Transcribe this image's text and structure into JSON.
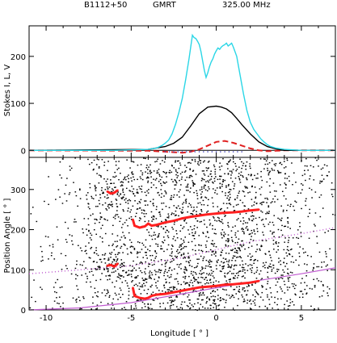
{
  "header": {
    "source": "B1112+50",
    "telescope": "GMRT",
    "frequency": "325.00  MHz"
  },
  "chart_data": [
    {
      "type": "line",
      "panel": "profile",
      "ylabel": "Stokes I, L, V",
      "xlim": [
        -11,
        7
      ],
      "ylim": [
        -15,
        265
      ],
      "xticks": [
        -10,
        -5,
        0,
        5
      ],
      "yticks": [
        0,
        100,
        200
      ],
      "colors": {
        "I": "#2ad6e6",
        "L": "#000000",
        "V": "#e02020",
        "PA": "#ff2020",
        "Vmark": "#4040c0"
      },
      "series": [
        {
          "key": "I",
          "x": [
            -11,
            -6,
            -4,
            -3.5,
            -3.2,
            -3,
            -2.8,
            -2.6,
            -2.4,
            -2.2,
            -2,
            -1.8,
            -1.6,
            -1.5,
            -1.4,
            -1.3,
            -1.2,
            -1.1,
            -1,
            -0.9,
            -0.8,
            -0.7,
            -0.6,
            -0.5,
            -0.4,
            -0.3,
            -0.2,
            -0.1,
            0,
            0.1,
            0.2,
            0.3,
            0.4,
            0.5,
            0.6,
            0.7,
            0.8,
            0.9,
            1,
            1.1,
            1.2,
            1.3,
            1.4,
            1.5,
            1.6,
            1.8,
            2,
            2.2,
            2.4,
            2.6,
            2.8,
            3,
            3.2,
            3.5,
            4,
            4.5,
            5,
            5.5,
            6,
            7
          ],
          "y": [
            0,
            0,
            2,
            5,
            10,
            15,
            22,
            35,
            55,
            80,
            110,
            150,
            195,
            220,
            245,
            240,
            238,
            232,
            225,
            210,
            190,
            170,
            155,
            165,
            178,
            188,
            195,
            205,
            212,
            218,
            215,
            220,
            223,
            225,
            228,
            222,
            225,
            228,
            220,
            210,
            200,
            180,
            160,
            140,
            120,
            85,
            60,
            45,
            35,
            25,
            18,
            12,
            8,
            5,
            2,
            1,
            0,
            0,
            0,
            0
          ]
        },
        {
          "key": "L",
          "x": [
            -11,
            -4,
            -3,
            -2.5,
            -2,
            -1.5,
            -1,
            -0.5,
            0,
            0.3,
            0.6,
            0.9,
            1.2,
            1.5,
            2,
            2.5,
            3,
            3.5,
            4,
            7
          ],
          "y": [
            0,
            2,
            8,
            15,
            28,
            52,
            78,
            92,
            94,
            92,
            88,
            80,
            68,
            55,
            35,
            18,
            8,
            3,
            0,
            0
          ]
        },
        {
          "key": "V",
          "x": [
            -11,
            -4,
            -3,
            -2,
            -1.5,
            -1,
            -0.5,
            0,
            0.5,
            1,
            1.5,
            2,
            2.5,
            3,
            4,
            7
          ],
          "y": [
            0,
            -1,
            -3,
            -5,
            -3,
            2,
            10,
            18,
            20,
            16,
            10,
            4,
            0,
            -2,
            0,
            0
          ]
        }
      ]
    },
    {
      "type": "scatter",
      "panel": "position-angle",
      "xlabel": "Longitude [ ° ]",
      "ylabel": "Position Angle [ ° ]",
      "xlim": [
        -11,
        7
      ],
      "ylim": [
        0,
        380
      ],
      "xticks": [
        -10,
        -5,
        0,
        5
      ],
      "yticks": [
        0,
        100,
        200,
        300
      ],
      "series": [
        {
          "name": "PA upper",
          "x": [
            -4.9,
            -4.8,
            -4.5,
            -4.2,
            -4,
            -3.8,
            -3.5,
            -3,
            -2.5,
            -2,
            -1.5,
            -1,
            -0.5,
            0,
            0.5,
            1,
            1.5,
            2,
            2.5
          ],
          "y": [
            225,
            210,
            205,
            208,
            215,
            210,
            212,
            218,
            222,
            228,
            232,
            235,
            238,
            240,
            242,
            243,
            245,
            248,
            250
          ]
        },
        {
          "name": "PA lower",
          "x": [
            -4.9,
            -4.8,
            -4.5,
            -4.2,
            -4,
            -3.8,
            -3.5,
            -3,
            -2.5,
            -2,
            -1.5,
            -1,
            -0.5,
            0,
            0.5,
            1,
            1.5,
            2,
            2.5
          ],
          "y": [
            55,
            35,
            30,
            28,
            30,
            35,
            38,
            40,
            44,
            48,
            52,
            56,
            58,
            60,
            63,
            64,
            66,
            68,
            72
          ]
        },
        {
          "name": "PA upper left",
          "x": [
            -6.4,
            -6.2,
            -6,
            -5.8
          ],
          "y": [
            295,
            290,
            292,
            298
          ]
        },
        {
          "name": "PA lower left",
          "x": [
            -6.4,
            -6.2,
            -6,
            -5.8
          ],
          "y": [
            110,
            112,
            108,
            115
          ]
        },
        {
          "name": "RVM fit",
          "x": [
            -11,
            -8,
            -5,
            -2,
            0,
            2,
            5,
            7
          ],
          "y": [
            0,
            5,
            18,
            40,
            55,
            70,
            90,
            105
          ]
        },
        {
          "name": "RVM fit +180",
          "x": [
            -11,
            -8,
            -5,
            -2,
            0,
            2,
            5,
            7
          ],
          "y": [
            90,
            100,
            110,
            130,
            150,
            170,
            190,
            205
          ]
        }
      ]
    }
  ]
}
